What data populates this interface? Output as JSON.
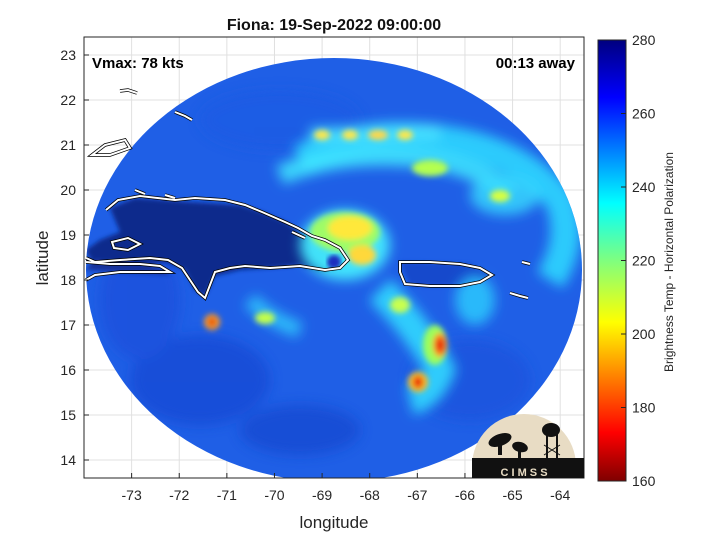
{
  "title": "Fiona: 19-Sep-2022 09:00:00",
  "annotations": {
    "vmax": "Vmax: 78 kts",
    "time_away": "00:13 away"
  },
  "axes": {
    "xlabel": "longitude",
    "ylabel": "latitude",
    "xlim": [
      -74,
      -63.5
    ],
    "ylim": [
      13.6,
      23.4
    ],
    "xticks": [
      -73,
      -72,
      -71,
      -70,
      -69,
      -68,
      -67,
      -66,
      -65,
      -64
    ],
    "yticks": [
      14,
      15,
      16,
      17,
      18,
      19,
      20,
      21,
      22,
      23
    ],
    "grid": true
  },
  "colorbar": {
    "label": "Brightness Temp - Horizontal Polarization",
    "range": [
      160,
      280
    ],
    "ticks": [
      160,
      180,
      200,
      220,
      240,
      260,
      280
    ],
    "colormap": "jet"
  },
  "storm_center": {
    "lon": -68.7,
    "lat": 18.6
  },
  "logo": {
    "text": "C I M S S"
  },
  "colors": {
    "background_scan": "#1f63e8",
    "land_dark": "#102a8a",
    "coastline": "#ffffff",
    "logo_bg": "#e8dcc4"
  }
}
